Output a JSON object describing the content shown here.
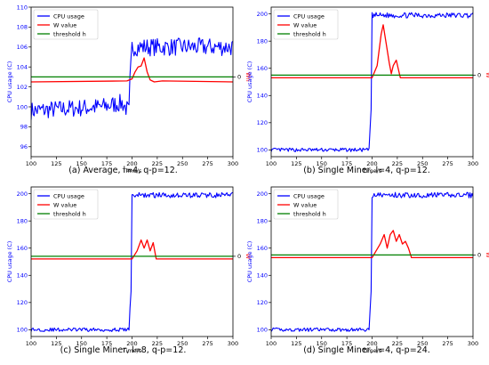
{
  "colors": {
    "cpu": "#0000ff",
    "w": "#ff0000",
    "threshold": "#008000",
    "axis": "#000000",
    "right_axis_label": "#ff0000",
    "left_axis_label": "#0000ff"
  },
  "chart_data": [
    {
      "type": "line",
      "caption": "(a) Average, l=4, q-p=12.",
      "xlabel": "Time/s",
      "ylabel": "CPU usage (C)",
      "right_label": "Wn",
      "right_tick": "0",
      "xlim": [
        100,
        300
      ],
      "ylim": [
        95,
        110
      ],
      "xticks": [
        100,
        125,
        150,
        175,
        200,
        225,
        250,
        275,
        300
      ],
      "yticks": [
        96,
        98,
        100,
        102,
        104,
        106,
        108,
        110
      ],
      "legend": "top-left",
      "threshold": 103.0,
      "series": [
        {
          "name": "CPU usage",
          "kind": "cpu",
          "x": [
            100,
            150,
            170,
            190,
            197,
            198,
            200,
            250,
            300
          ],
          "y": [
            99.6,
            99.9,
            100.0,
            100.4,
            99.5,
            102.5,
            106.0,
            106.0,
            106.0
          ]
        },
        {
          "name": "W value",
          "kind": "w",
          "x": [
            100,
            195,
            200,
            203,
            206,
            209,
            212,
            215,
            218,
            222,
            230,
            300
          ],
          "y": [
            102.5,
            102.6,
            102.8,
            103.5,
            104.0,
            104.1,
            104.9,
            103.5,
            102.7,
            102.5,
            102.6,
            102.5
          ]
        },
        {
          "name": "threshold h",
          "kind": "threshold",
          "x": [
            100,
            300
          ],
          "y": [
            103.0,
            103.0
          ]
        }
      ]
    },
    {
      "type": "line",
      "caption": "(b) Single Miner, l=4, q-p=12.",
      "xlabel": "Time/s",
      "ylabel": "CPU usage (C)",
      "right_label": "W",
      "right_tick": "0",
      "xlim": [
        100,
        300
      ],
      "ylim": [
        95,
        205
      ],
      "xticks": [
        100,
        125,
        150,
        175,
        200,
        225,
        250,
        275,
        300
      ],
      "yticks": [
        100,
        120,
        140,
        160,
        180,
        200
      ],
      "legend": "top-left",
      "threshold": 155,
      "series": [
        {
          "name": "CPU usage",
          "kind": "cpu",
          "x": [
            100,
            195,
            197,
            199,
            200,
            250,
            300
          ],
          "y": [
            100,
            100,
            100,
            130,
            199,
            199,
            199
          ]
        },
        {
          "name": "W value",
          "kind": "w",
          "x": [
            100,
            200,
            205,
            209,
            211,
            214,
            217,
            219,
            221,
            224,
            228,
            300
          ],
          "y": [
            153,
            153,
            162,
            185,
            192,
            178,
            164,
            156,
            162,
            166,
            153,
            153
          ]
        },
        {
          "name": "threshold h",
          "kind": "threshold",
          "x": [
            100,
            300
          ],
          "y": [
            155,
            155
          ]
        }
      ]
    },
    {
      "type": "line",
      "caption": "(c) Single Miner, l=8, q-p=12.",
      "xlabel": "Time/s",
      "ylabel": "CPU usage (C)",
      "right_label": "W",
      "right_tick": "0",
      "xlim": [
        100,
        300
      ],
      "ylim": [
        95,
        205
      ],
      "xticks": [
        100,
        125,
        150,
        175,
        200,
        225,
        250,
        275,
        300
      ],
      "yticks": [
        100,
        120,
        140,
        160,
        180,
        200
      ],
      "legend": "top-left",
      "threshold": 154,
      "series": [
        {
          "name": "CPU usage",
          "kind": "cpu",
          "x": [
            100,
            195,
            197,
            199,
            200,
            250,
            300
          ],
          "y": [
            100,
            100,
            100,
            130,
            199,
            199,
            199
          ]
        },
        {
          "name": "W value",
          "kind": "w",
          "x": [
            100,
            200,
            205,
            209,
            212,
            215,
            218,
            221,
            224,
            300
          ],
          "y": [
            152,
            152,
            158,
            166,
            160,
            166,
            158,
            164,
            152,
            152
          ]
        },
        {
          "name": "threshold h",
          "kind": "threshold",
          "x": [
            100,
            300
          ],
          "y": [
            154,
            154
          ]
        }
      ]
    },
    {
      "type": "line",
      "caption": "(d) Single Miner, l=4, q-p=24.",
      "xlabel": "Time/s",
      "ylabel": "CPU usage (C)",
      "right_label": "W",
      "right_tick": "0",
      "xlim": [
        100,
        300
      ],
      "ylim": [
        95,
        205
      ],
      "xticks": [
        100,
        125,
        150,
        175,
        200,
        225,
        250,
        275,
        300
      ],
      "yticks": [
        100,
        120,
        140,
        160,
        180,
        200
      ],
      "legend": "top-left",
      "threshold": 155,
      "series": [
        {
          "name": "CPU usage",
          "kind": "cpu",
          "x": [
            100,
            195,
            197,
            199,
            200,
            250,
            300
          ],
          "y": [
            100,
            100,
            100,
            130,
            199,
            199,
            199
          ]
        },
        {
          "name": "W value",
          "kind": "w",
          "x": [
            100,
            200,
            204,
            208,
            212,
            215,
            218,
            221,
            224,
            227,
            230,
            233,
            236,
            239,
            300
          ],
          "y": [
            153,
            153,
            158,
            163,
            170,
            160,
            170,
            173,
            165,
            170,
            163,
            165,
            160,
            153,
            153
          ]
        },
        {
          "name": "threshold h",
          "kind": "threshold",
          "x": [
            100,
            300
          ],
          "y": [
            155,
            155
          ]
        }
      ]
    }
  ]
}
